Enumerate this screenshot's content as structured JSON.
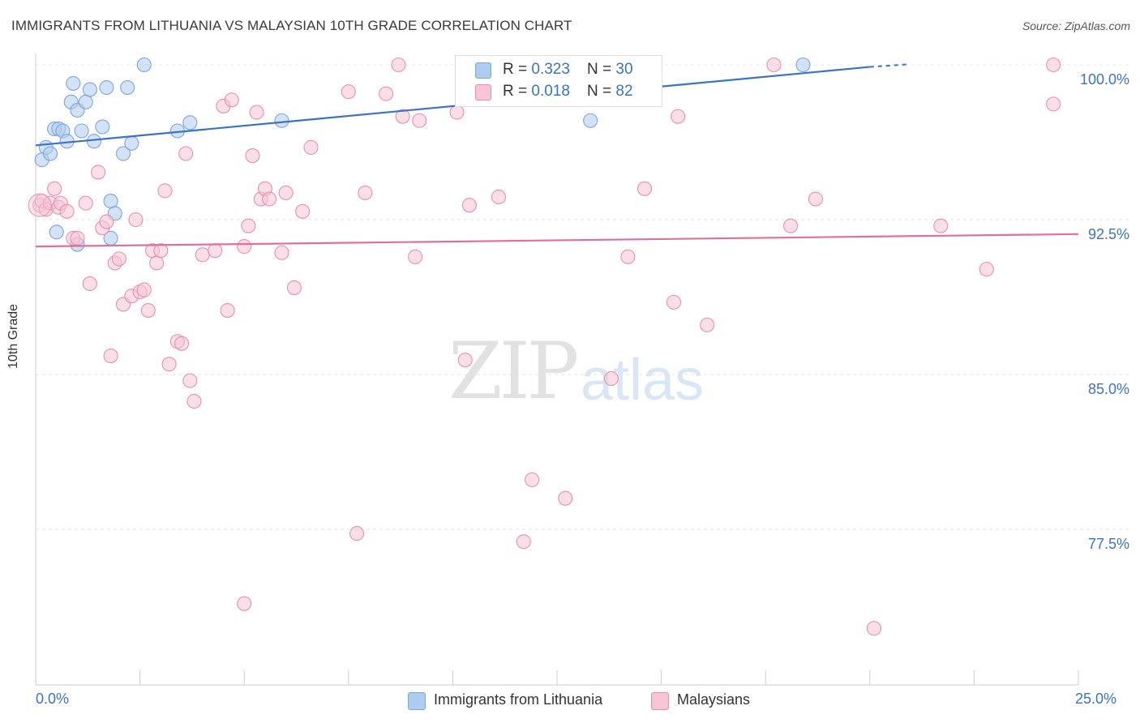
{
  "title": "IMMIGRANTS FROM LITHUANIA VS MALAYSIAN 10TH GRADE CORRELATION CHART",
  "source": "Source: ZipAtlas.com",
  "watermark": {
    "zip": "ZIP",
    "atlas": "atlas"
  },
  "legend_top": [
    {
      "r_label": "R = ",
      "r_value": "0.323",
      "n_label": "N = ",
      "n_value": "30",
      "color": "#aecbf0",
      "border": "#7aa6dd"
    },
    {
      "r_label": "R = ",
      "r_value": "0.018",
      "n_label": "N = ",
      "n_value": "82",
      "color": "#f7c4d5",
      "border": "#e98fae"
    }
  ],
  "legend_bottom": [
    {
      "label": "Immigrants from Lithuania",
      "color": "#aecbf0",
      "border": "#7aa6dd"
    },
    {
      "label": "Malaysians",
      "color": "#f7c4d5",
      "border": "#e98fae"
    }
  ],
  "x_tick_labels": {
    "left": "0.0%",
    "right": "25.0%"
  },
  "chart_data": {
    "type": "scatter",
    "title": "IMMIGRANTS FROM LITHUANIA VS MALAYSIAN 10TH GRADE CORRELATION CHART",
    "xlabel": "",
    "ylabel": "10th Grade",
    "xlim": [
      0,
      25
    ],
    "ylim": [
      72,
      100.5
    ],
    "y_ticks": [
      {
        "value": 100,
        "label": "100.0%"
      },
      {
        "value": 92.5,
        "label": "92.5%"
      },
      {
        "value": 85,
        "label": "85.0%"
      },
      {
        "value": 77.5,
        "label": "77.5%"
      }
    ],
    "grid": true,
    "legend_placement": "top-center",
    "series": [
      {
        "name": "Immigrants from Lithuania",
        "color": "#7aa6dd",
        "fill": "#aecbf0",
        "trend": {
          "x": [
            0,
            20
          ],
          "y": [
            96.1,
            99.9
          ],
          "color": "#3a73c4"
        },
        "x": [
          0.15,
          0.25,
          0.35,
          0.45,
          0.55,
          0.65,
          0.75,
          0.85,
          0.9,
          1.0,
          1.1,
          1.2,
          1.3,
          1.4,
          1.6,
          1.7,
          1.8,
          1.9,
          2.1,
          2.2,
          2.3,
          2.6,
          3.4,
          3.7,
          5.9,
          13.3,
          18.4,
          0.5,
          1.0,
          1.8
        ],
        "y": [
          95.4,
          96.0,
          95.7,
          96.9,
          96.9,
          96.8,
          96.3,
          98.2,
          99.1,
          97.8,
          96.8,
          98.2,
          98.8,
          96.3,
          97.0,
          98.9,
          93.4,
          92.8,
          95.7,
          98.9,
          96.2,
          100.0,
          96.8,
          97.2,
          97.3,
          97.3,
          100.0,
          91.9,
          91.3,
          91.6
        ]
      },
      {
        "name": "Malaysians",
        "color": "#e98fae",
        "fill": "#f7c4d5",
        "trend": {
          "x": [
            0,
            25
          ],
          "y": [
            91.2,
            91.8
          ],
          "color": "#e0709b"
        },
        "x": [
          0.1,
          0.15,
          0.25,
          0.35,
          0.45,
          0.55,
          0.6,
          0.75,
          0.9,
          1.0,
          1.2,
          1.3,
          1.5,
          1.6,
          1.7,
          1.8,
          1.9,
          2.0,
          2.1,
          2.3,
          2.4,
          2.5,
          2.6,
          2.7,
          2.8,
          2.9,
          3.0,
          3.1,
          3.2,
          3.4,
          3.5,
          3.6,
          3.7,
          3.8,
          4.0,
          4.3,
          4.5,
          4.6,
          4.7,
          5.0,
          5.0,
          5.1,
          5.2,
          5.3,
          5.4,
          5.5,
          5.6,
          5.9,
          6.0,
          6.2,
          6.4,
          6.6,
          7.5,
          8.4,
          7.9,
          7.7,
          8.8,
          9.1,
          8.7,
          9.2,
          10.1,
          10.4,
          11.1,
          11.7,
          12.7,
          13.8,
          14.6,
          14.2,
          15.4,
          15.3,
          16.1,
          18.1,
          17.7,
          18.7,
          20.1,
          21.7,
          22.8,
          24.4,
          24.4,
          10.3,
          11.9,
          14.3
        ],
        "y": [
          93.2,
          93.4,
          93.0,
          93.3,
          94.0,
          93.1,
          93.3,
          92.9,
          91.6,
          91.6,
          93.3,
          89.4,
          94.8,
          92.1,
          92.4,
          85.9,
          90.4,
          90.6,
          88.4,
          88.8,
          92.5,
          89.0,
          89.1,
          88.1,
          91.0,
          90.4,
          91.0,
          93.9,
          85.5,
          86.6,
          86.5,
          95.7,
          84.7,
          83.7,
          90.8,
          91.0,
          98.0,
          88.1,
          98.3,
          91.2,
          73.9,
          92.2,
          95.6,
          97.7,
          93.5,
          94.0,
          93.5,
          90.9,
          93.8,
          89.2,
          92.9,
          96.0,
          98.7,
          98.6,
          93.8,
          77.3,
          97.5,
          90.7,
          100.0,
          97.3,
          97.7,
          93.2,
          93.6,
          76.9,
          79.0,
          84.8,
          94.0,
          90.7,
          97.5,
          88.5,
          87.4,
          92.2,
          100.0,
          93.5,
          72.7,
          92.2,
          90.1,
          98.1,
          100.0,
          85.7,
          79.9,
          100.0
        ]
      }
    ]
  }
}
